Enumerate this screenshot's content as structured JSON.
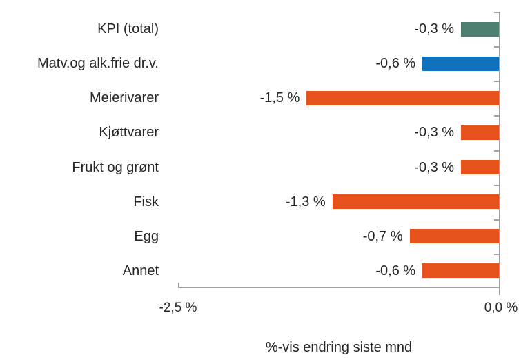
{
  "chart_data": {
    "type": "bar",
    "orientation": "horizontal",
    "title": "",
    "xlabel": "%-vis endring siste mnd",
    "ylabel": "",
    "xlim": [
      -2.5,
      0
    ],
    "x_tick_labels": [
      "-2,5 %",
      "0,0 %"
    ],
    "grid": false,
    "legend": false,
    "categories": [
      "KPI (total)",
      "Matv.og alk.frie dr.v.",
      "Meierivarer",
      "Kjøttvarer",
      "Frukt og grønt",
      "Fisk",
      "Egg",
      "Annet"
    ],
    "values": [
      -0.3,
      -0.6,
      -1.5,
      -0.3,
      -0.3,
      -1.3,
      -0.7,
      -0.6
    ],
    "value_labels": [
      "-0,3 %",
      "-0,6 %",
      "-1,5 %",
      "-0,3 %",
      "-0,3 %",
      "-1,3 %",
      "-0,7 %",
      "-0,6 %"
    ],
    "bar_colors": [
      "#4E7E72",
      "#1072BC",
      "#E6521B",
      "#E6521B",
      "#E6521B",
      "#E6521B",
      "#E6521B",
      "#E6521B"
    ],
    "colors": {
      "kpi_total_bar": "#4E7E72",
      "matvarer_bar": "#1072BC",
      "category_bar": "#E6521B",
      "axis_line": "#A0A0A0",
      "text": "#262626"
    }
  }
}
